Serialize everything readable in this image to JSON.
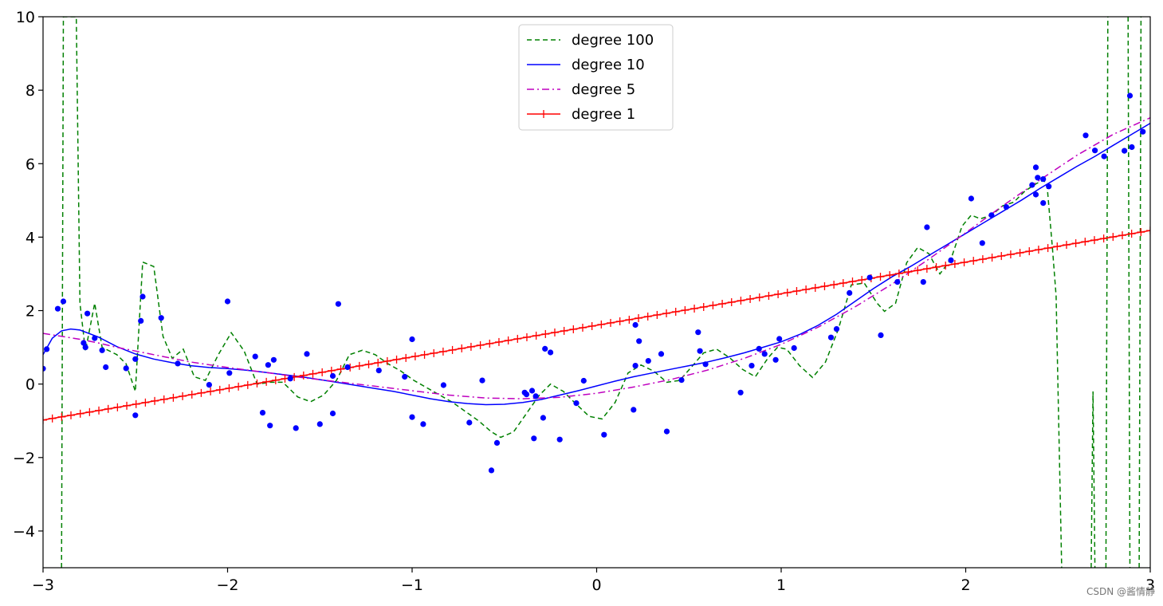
{
  "chart_data": {
    "type": "line",
    "title": "",
    "xlabel": "",
    "ylabel": "",
    "xlim": [
      -3,
      3
    ],
    "ylim": [
      -5,
      10
    ],
    "x_ticks": [
      -3,
      -2,
      -1,
      0,
      1,
      2,
      3
    ],
    "y_ticks": [
      -4,
      -2,
      0,
      2,
      4,
      6,
      8,
      10
    ],
    "x_tick_labels": [
      "−3",
      "−2",
      "−1",
      "0",
      "1",
      "2",
      "3"
    ],
    "y_tick_labels": [
      "−4",
      "−2",
      "0",
      "2",
      "4",
      "6",
      "8",
      "10"
    ],
    "grid": false,
    "legend_position": "upper center",
    "scatter": {
      "color": "#0000ff",
      "points": [
        [
          -3.0,
          0.42
        ],
        [
          -2.98,
          0.95
        ],
        [
          -2.92,
          2.05
        ],
        [
          -2.89,
          2.25
        ],
        [
          -2.78,
          1.12
        ],
        [
          -2.77,
          1.0
        ],
        [
          -2.76,
          1.92
        ],
        [
          -2.72,
          1.25
        ],
        [
          -2.68,
          0.92
        ],
        [
          -2.66,
          0.46
        ],
        [
          -2.55,
          0.43
        ],
        [
          -2.5,
          0.68
        ],
        [
          -2.5,
          -0.85
        ],
        [
          -2.47,
          1.72
        ],
        [
          -2.46,
          2.38
        ],
        [
          -2.36,
          1.8
        ],
        [
          -2.27,
          0.56
        ],
        [
          -2.1,
          -0.02
        ],
        [
          -2.0,
          2.25
        ],
        [
          -1.99,
          0.3
        ],
        [
          -1.85,
          0.75
        ],
        [
          -1.81,
          -0.78
        ],
        [
          -1.78,
          0.52
        ],
        [
          -1.77,
          -1.13
        ],
        [
          -1.75,
          0.66
        ],
        [
          -1.66,
          0.15
        ],
        [
          -1.63,
          -1.2
        ],
        [
          -1.57,
          0.82
        ],
        [
          -1.5,
          -1.09
        ],
        [
          -1.43,
          -0.8
        ],
        [
          -1.43,
          0.22
        ],
        [
          -1.4,
          2.18
        ],
        [
          -1.35,
          0.46
        ],
        [
          -1.18,
          0.37
        ],
        [
          -1.04,
          0.2
        ],
        [
          -1.0,
          1.22
        ],
        [
          -1.0,
          -0.9
        ],
        [
          -0.94,
          -1.09
        ],
        [
          -0.83,
          -0.03
        ],
        [
          -0.69,
          -1.05
        ],
        [
          -0.62,
          0.1
        ],
        [
          -0.57,
          -2.35
        ],
        [
          -0.54,
          -1.6
        ],
        [
          -0.39,
          -0.23
        ],
        [
          -0.38,
          -0.28
        ],
        [
          -0.35,
          -0.18
        ],
        [
          -0.34,
          -1.48
        ],
        [
          -0.33,
          -0.33
        ],
        [
          -0.29,
          -0.92
        ],
        [
          -0.28,
          0.96
        ],
        [
          -0.25,
          0.86
        ],
        [
          -0.2,
          -1.51
        ],
        [
          -0.11,
          -0.52
        ],
        [
          -0.07,
          0.09
        ],
        [
          0.04,
          -1.38
        ],
        [
          0.2,
          -0.7
        ],
        [
          0.21,
          0.5
        ],
        [
          0.21,
          1.61
        ],
        [
          0.23,
          1.17
        ],
        [
          0.28,
          0.63
        ],
        [
          0.35,
          0.82
        ],
        [
          0.38,
          -1.29
        ],
        [
          0.46,
          0.11
        ],
        [
          0.55,
          1.41
        ],
        [
          0.56,
          0.9
        ],
        [
          0.59,
          0.54
        ],
        [
          0.78,
          -0.23
        ],
        [
          0.84,
          0.5
        ],
        [
          0.88,
          0.96
        ],
        [
          0.91,
          0.82
        ],
        [
          0.97,
          0.66
        ],
        [
          0.99,
          1.23
        ],
        [
          1.07,
          0.98
        ],
        [
          1.27,
          1.27
        ],
        [
          1.3,
          1.5
        ],
        [
          1.37,
          2.48
        ],
        [
          1.48,
          2.9
        ],
        [
          1.54,
          1.33
        ],
        [
          1.63,
          2.78
        ],
        [
          1.77,
          2.78
        ],
        [
          1.79,
          4.27
        ],
        [
          1.92,
          3.37
        ],
        [
          2.03,
          5.05
        ],
        [
          2.09,
          3.84
        ],
        [
          2.14,
          4.6
        ],
        [
          2.22,
          4.82
        ],
        [
          2.36,
          5.42
        ],
        [
          2.38,
          5.16
        ],
        [
          2.38,
          5.9
        ],
        [
          2.39,
          5.62
        ],
        [
          2.42,
          4.93
        ],
        [
          2.42,
          5.58
        ],
        [
          2.45,
          5.38
        ],
        [
          2.65,
          6.77
        ],
        [
          2.7,
          6.36
        ],
        [
          2.75,
          6.2
        ],
        [
          2.86,
          6.35
        ],
        [
          2.89,
          7.85
        ],
        [
          2.9,
          6.45
        ],
        [
          2.96,
          6.87
        ]
      ]
    },
    "series": [
      {
        "name": "degree 100",
        "color": "#008000",
        "dash": "dashed",
        "points": [
          [
            -2.9,
            -5.0
          ],
          [
            -2.89,
            10.0
          ],
          [
            -2.82,
            10.0
          ],
          [
            -2.8,
            2.2
          ],
          [
            -2.77,
            0.9
          ],
          [
            -2.72,
            2.2
          ],
          [
            -2.68,
            1.0
          ],
          [
            -2.6,
            0.8
          ],
          [
            -2.55,
            0.55
          ],
          [
            -2.5,
            -0.2
          ],
          [
            -2.46,
            3.32
          ],
          [
            -2.4,
            3.2
          ],
          [
            -2.35,
            1.3
          ],
          [
            -2.3,
            0.7
          ],
          [
            -2.24,
            0.95
          ],
          [
            -2.18,
            0.2
          ],
          [
            -2.12,
            0.1
          ],
          [
            -2.05,
            0.8
          ],
          [
            -1.98,
            1.4
          ],
          [
            -1.91,
            0.9
          ],
          [
            -1.84,
            0.0
          ],
          [
            -1.77,
            0.05
          ],
          [
            -1.7,
            0.05
          ],
          [
            -1.62,
            -0.35
          ],
          [
            -1.55,
            -0.48
          ],
          [
            -1.48,
            -0.3
          ],
          [
            -1.41,
            0.1
          ],
          [
            -1.34,
            0.8
          ],
          [
            -1.27,
            0.92
          ],
          [
            -1.2,
            0.8
          ],
          [
            -1.13,
            0.55
          ],
          [
            -1.06,
            0.35
          ],
          [
            -0.99,
            0.1
          ],
          [
            -0.92,
            -0.1
          ],
          [
            -0.85,
            -0.3
          ],
          [
            -0.78,
            -0.5
          ],
          [
            -0.71,
            -0.75
          ],
          [
            -0.64,
            -1.0
          ],
          [
            -0.57,
            -1.3
          ],
          [
            -0.52,
            -1.45
          ],
          [
            -0.45,
            -1.3
          ],
          [
            -0.38,
            -0.8
          ],
          [
            -0.31,
            -0.3
          ],
          [
            -0.25,
            0.0
          ],
          [
            -0.18,
            -0.2
          ],
          [
            -0.11,
            -0.55
          ],
          [
            -0.04,
            -0.88
          ],
          [
            0.03,
            -0.95
          ],
          [
            0.1,
            -0.5
          ],
          [
            0.17,
            0.3
          ],
          [
            0.24,
            0.52
          ],
          [
            0.31,
            0.35
          ],
          [
            0.38,
            0.05
          ],
          [
            0.45,
            0.1
          ],
          [
            0.52,
            0.5
          ],
          [
            0.58,
            0.85
          ],
          [
            0.65,
            0.95
          ],
          [
            0.72,
            0.72
          ],
          [
            0.79,
            0.4
          ],
          [
            0.86,
            0.2
          ],
          [
            0.93,
            0.72
          ],
          [
            0.98,
            1.0
          ],
          [
            1.03,
            0.95
          ],
          [
            1.1,
            0.5
          ],
          [
            1.17,
            0.18
          ],
          [
            1.24,
            0.6
          ],
          [
            1.31,
            1.5
          ],
          [
            1.38,
            2.7
          ],
          [
            1.45,
            2.75
          ],
          [
            1.52,
            2.2
          ],
          [
            1.56,
            1.98
          ],
          [
            1.62,
            2.2
          ],
          [
            1.68,
            3.3
          ],
          [
            1.74,
            3.72
          ],
          [
            1.8,
            3.55
          ],
          [
            1.86,
            3.0
          ],
          [
            1.92,
            3.4
          ],
          [
            1.98,
            4.3
          ],
          [
            2.03,
            4.6
          ],
          [
            2.08,
            4.5
          ],
          [
            2.14,
            4.6
          ],
          [
            2.2,
            4.85
          ],
          [
            2.26,
            4.95
          ],
          [
            2.32,
            5.25
          ],
          [
            2.38,
            5.45
          ],
          [
            2.42,
            5.55
          ],
          [
            2.44,
            5.45
          ],
          [
            2.47,
            3.7
          ],
          [
            2.49,
            2.4
          ],
          [
            2.52,
            -5.0
          ]
        ],
        "extra_segments": [
          [
            [
              2.68,
              -5.0
            ],
            [
              2.69,
              -0.2
            ],
            [
              2.7,
              -5.0
            ]
          ],
          [
            [
              2.76,
              -5.0
            ],
            [
              2.77,
              10.0
            ]
          ],
          [
            [
              2.88,
              10.0
            ],
            [
              2.89,
              -5.0
            ]
          ],
          [
            [
              2.94,
              -5.0
            ],
            [
              2.95,
              10.0
            ]
          ]
        ]
      },
      {
        "name": "degree 10",
        "color": "#0000ff",
        "dash": "solid",
        "points": [
          [
            -3.0,
            0.8
          ],
          [
            -2.95,
            1.25
          ],
          [
            -2.9,
            1.45
          ],
          [
            -2.85,
            1.5
          ],
          [
            -2.8,
            1.47
          ],
          [
            -2.7,
            1.28
          ],
          [
            -2.6,
            1.02
          ],
          [
            -2.5,
            0.82
          ],
          [
            -2.4,
            0.68
          ],
          [
            -2.3,
            0.58
          ],
          [
            -2.2,
            0.5
          ],
          [
            -2.1,
            0.45
          ],
          [
            -2.0,
            0.42
          ],
          [
            -1.9,
            0.38
          ],
          [
            -1.8,
            0.32
          ],
          [
            -1.7,
            0.26
          ],
          [
            -1.6,
            0.2
          ],
          [
            -1.5,
            0.12
          ],
          [
            -1.4,
            0.04
          ],
          [
            -1.3,
            -0.04
          ],
          [
            -1.2,
            -0.12
          ],
          [
            -1.1,
            -0.2
          ],
          [
            -1.0,
            -0.3
          ],
          [
            -0.9,
            -0.4
          ],
          [
            -0.8,
            -0.48
          ],
          [
            -0.7,
            -0.53
          ],
          [
            -0.6,
            -0.56
          ],
          [
            -0.5,
            -0.55
          ],
          [
            -0.4,
            -0.5
          ],
          [
            -0.3,
            -0.42
          ],
          [
            -0.2,
            -0.3
          ],
          [
            -0.1,
            -0.18
          ],
          [
            0.0,
            -0.05
          ],
          [
            0.1,
            0.08
          ],
          [
            0.2,
            0.2
          ],
          [
            0.3,
            0.3
          ],
          [
            0.4,
            0.4
          ],
          [
            0.5,
            0.5
          ],
          [
            0.6,
            0.6
          ],
          [
            0.7,
            0.72
          ],
          [
            0.8,
            0.85
          ],
          [
            0.9,
            1.0
          ],
          [
            1.0,
            1.15
          ],
          [
            1.1,
            1.35
          ],
          [
            1.2,
            1.6
          ],
          [
            1.3,
            1.9
          ],
          [
            1.4,
            2.25
          ],
          [
            1.5,
            2.6
          ],
          [
            1.6,
            2.92
          ],
          [
            1.7,
            3.2
          ],
          [
            1.8,
            3.5
          ],
          [
            1.9,
            3.8
          ],
          [
            2.0,
            4.1
          ],
          [
            2.1,
            4.4
          ],
          [
            2.2,
            4.7
          ],
          [
            2.3,
            5.0
          ],
          [
            2.4,
            5.32
          ],
          [
            2.5,
            5.62
          ],
          [
            2.6,
            5.92
          ],
          [
            2.7,
            6.2
          ],
          [
            2.8,
            6.5
          ],
          [
            2.9,
            6.8
          ],
          [
            3.0,
            7.1
          ]
        ]
      },
      {
        "name": "degree 5",
        "color": "#bf00bf",
        "dash": "dashdot",
        "points": [
          [
            -3.0,
            1.38
          ],
          [
            -2.9,
            1.3
          ],
          [
            -2.8,
            1.22
          ],
          [
            -2.7,
            1.12
          ],
          [
            -2.6,
            1.0
          ],
          [
            -2.4,
            0.8
          ],
          [
            -2.2,
            0.6
          ],
          [
            -2.0,
            0.45
          ],
          [
            -1.8,
            0.32
          ],
          [
            -1.6,
            0.18
          ],
          [
            -1.4,
            0.06
          ],
          [
            -1.2,
            -0.06
          ],
          [
            -1.0,
            -0.18
          ],
          [
            -0.8,
            -0.3
          ],
          [
            -0.6,
            -0.38
          ],
          [
            -0.4,
            -0.4
          ],
          [
            -0.2,
            -0.36
          ],
          [
            0.0,
            -0.25
          ],
          [
            0.2,
            -0.08
          ],
          [
            0.4,
            0.12
          ],
          [
            0.6,
            0.38
          ],
          [
            0.8,
            0.7
          ],
          [
            1.0,
            1.08
          ],
          [
            1.2,
            1.55
          ],
          [
            1.4,
            2.1
          ],
          [
            1.6,
            2.72
          ],
          [
            1.8,
            3.4
          ],
          [
            2.0,
            4.12
          ],
          [
            2.2,
            4.85
          ],
          [
            2.4,
            5.55
          ],
          [
            2.6,
            6.22
          ],
          [
            2.8,
            6.8
          ],
          [
            3.0,
            7.25
          ]
        ]
      },
      {
        "name": "degree 1",
        "color": "#ff0000",
        "dash": "solid",
        "marker": "+",
        "slope": 0.86,
        "intercept": 1.6,
        "marker_count": 120
      }
    ]
  },
  "watermark": "CSDN @酱情静"
}
